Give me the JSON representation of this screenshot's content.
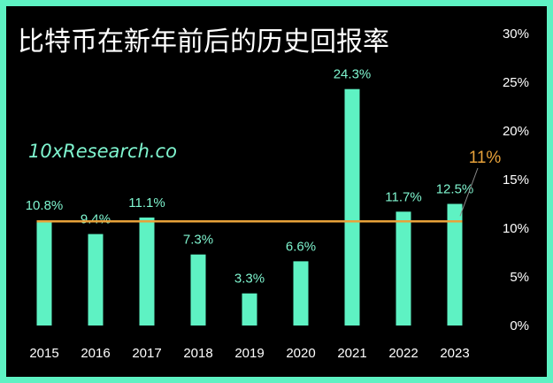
{
  "colors": {
    "background": "#000000",
    "frame": "#5ef2c3",
    "bar": "#5ef2c3",
    "label": "#7ff5cf",
    "average": "#e8a23a",
    "text": "#ffffff"
  },
  "watermark": "10xResearch.co",
  "chart_data": {
    "type": "bar",
    "title": "比特币在新年前后的历史回报率",
    "categories": [
      "2015",
      "2016",
      "2017",
      "2018",
      "2019",
      "2020",
      "2021",
      "2022",
      "2023"
    ],
    "values": [
      10.8,
      9.4,
      11.1,
      7.3,
      3.3,
      6.6,
      24.3,
      11.7,
      12.5
    ],
    "value_labels": [
      "10.8%",
      "9.4%",
      "11.1%",
      "7.3%",
      "3.3%",
      "6.6%",
      "24.3%",
      "11.7%",
      "12.5%"
    ],
    "ylim": [
      0,
      30
    ],
    "yticks": [
      0,
      5,
      10,
      15,
      20,
      25,
      30
    ],
    "ytick_labels": [
      "0%",
      "5%",
      "10%",
      "15%",
      "20%",
      "25%",
      "30%"
    ],
    "y_axis_position": "right",
    "grid": false,
    "legend": "none",
    "average_line": {
      "value": 10.7,
      "label": "11%"
    },
    "xlabel": "",
    "ylabel": ""
  }
}
